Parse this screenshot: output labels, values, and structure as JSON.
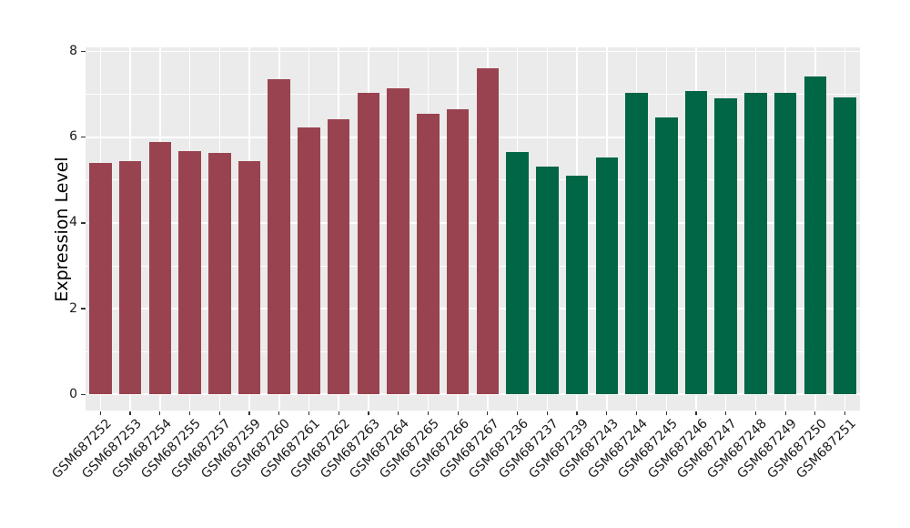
{
  "chart_data": {
    "type": "bar",
    "title": "",
    "xlabel": "",
    "ylabel": "Expression Level",
    "ylim": [
      0,
      8
    ],
    "panel_range": [
      -0.38,
      8.1
    ],
    "yticks": [
      0,
      2,
      4,
      6,
      8
    ],
    "yticks_minor": [
      1,
      3,
      5,
      7
    ],
    "grid": true,
    "legend_position": "none",
    "categories": [
      "GSM687252",
      "GSM687253",
      "GSM687254",
      "GSM687255",
      "GSM687257",
      "GSM687259",
      "GSM687260",
      "GSM687261",
      "GSM687262",
      "GSM687263",
      "GSM687264",
      "GSM687265",
      "GSM687266",
      "GSM687267",
      "GSM687236",
      "GSM687237",
      "GSM687239",
      "GSM687243",
      "GSM687244",
      "GSM687245",
      "GSM687246",
      "GSM687247",
      "GSM687248",
      "GSM687249",
      "GSM687250",
      "GSM687251"
    ],
    "values": [
      5.4,
      5.45,
      5.88,
      5.68,
      5.63,
      5.44,
      7.36,
      6.23,
      6.42,
      7.03,
      7.15,
      6.55,
      6.65,
      7.62,
      5.65,
      5.31,
      5.11,
      5.53,
      7.03,
      6.46,
      7.07,
      6.9,
      7.03,
      7.04,
      7.43,
      6.93
    ],
    "color_groups": [
      {
        "color": "#9A4350",
        "count": 14
      },
      {
        "color": "#006646",
        "count": 12
      }
    ],
    "colors": {
      "panel_bg": "#EBEBEB",
      "gridline": "#FFFFFF",
      "tick_mark": "#333333",
      "axis_text": "#1A1A1A",
      "axis_title": "#000000",
      "page_bg": "#FFFFFF"
    }
  }
}
